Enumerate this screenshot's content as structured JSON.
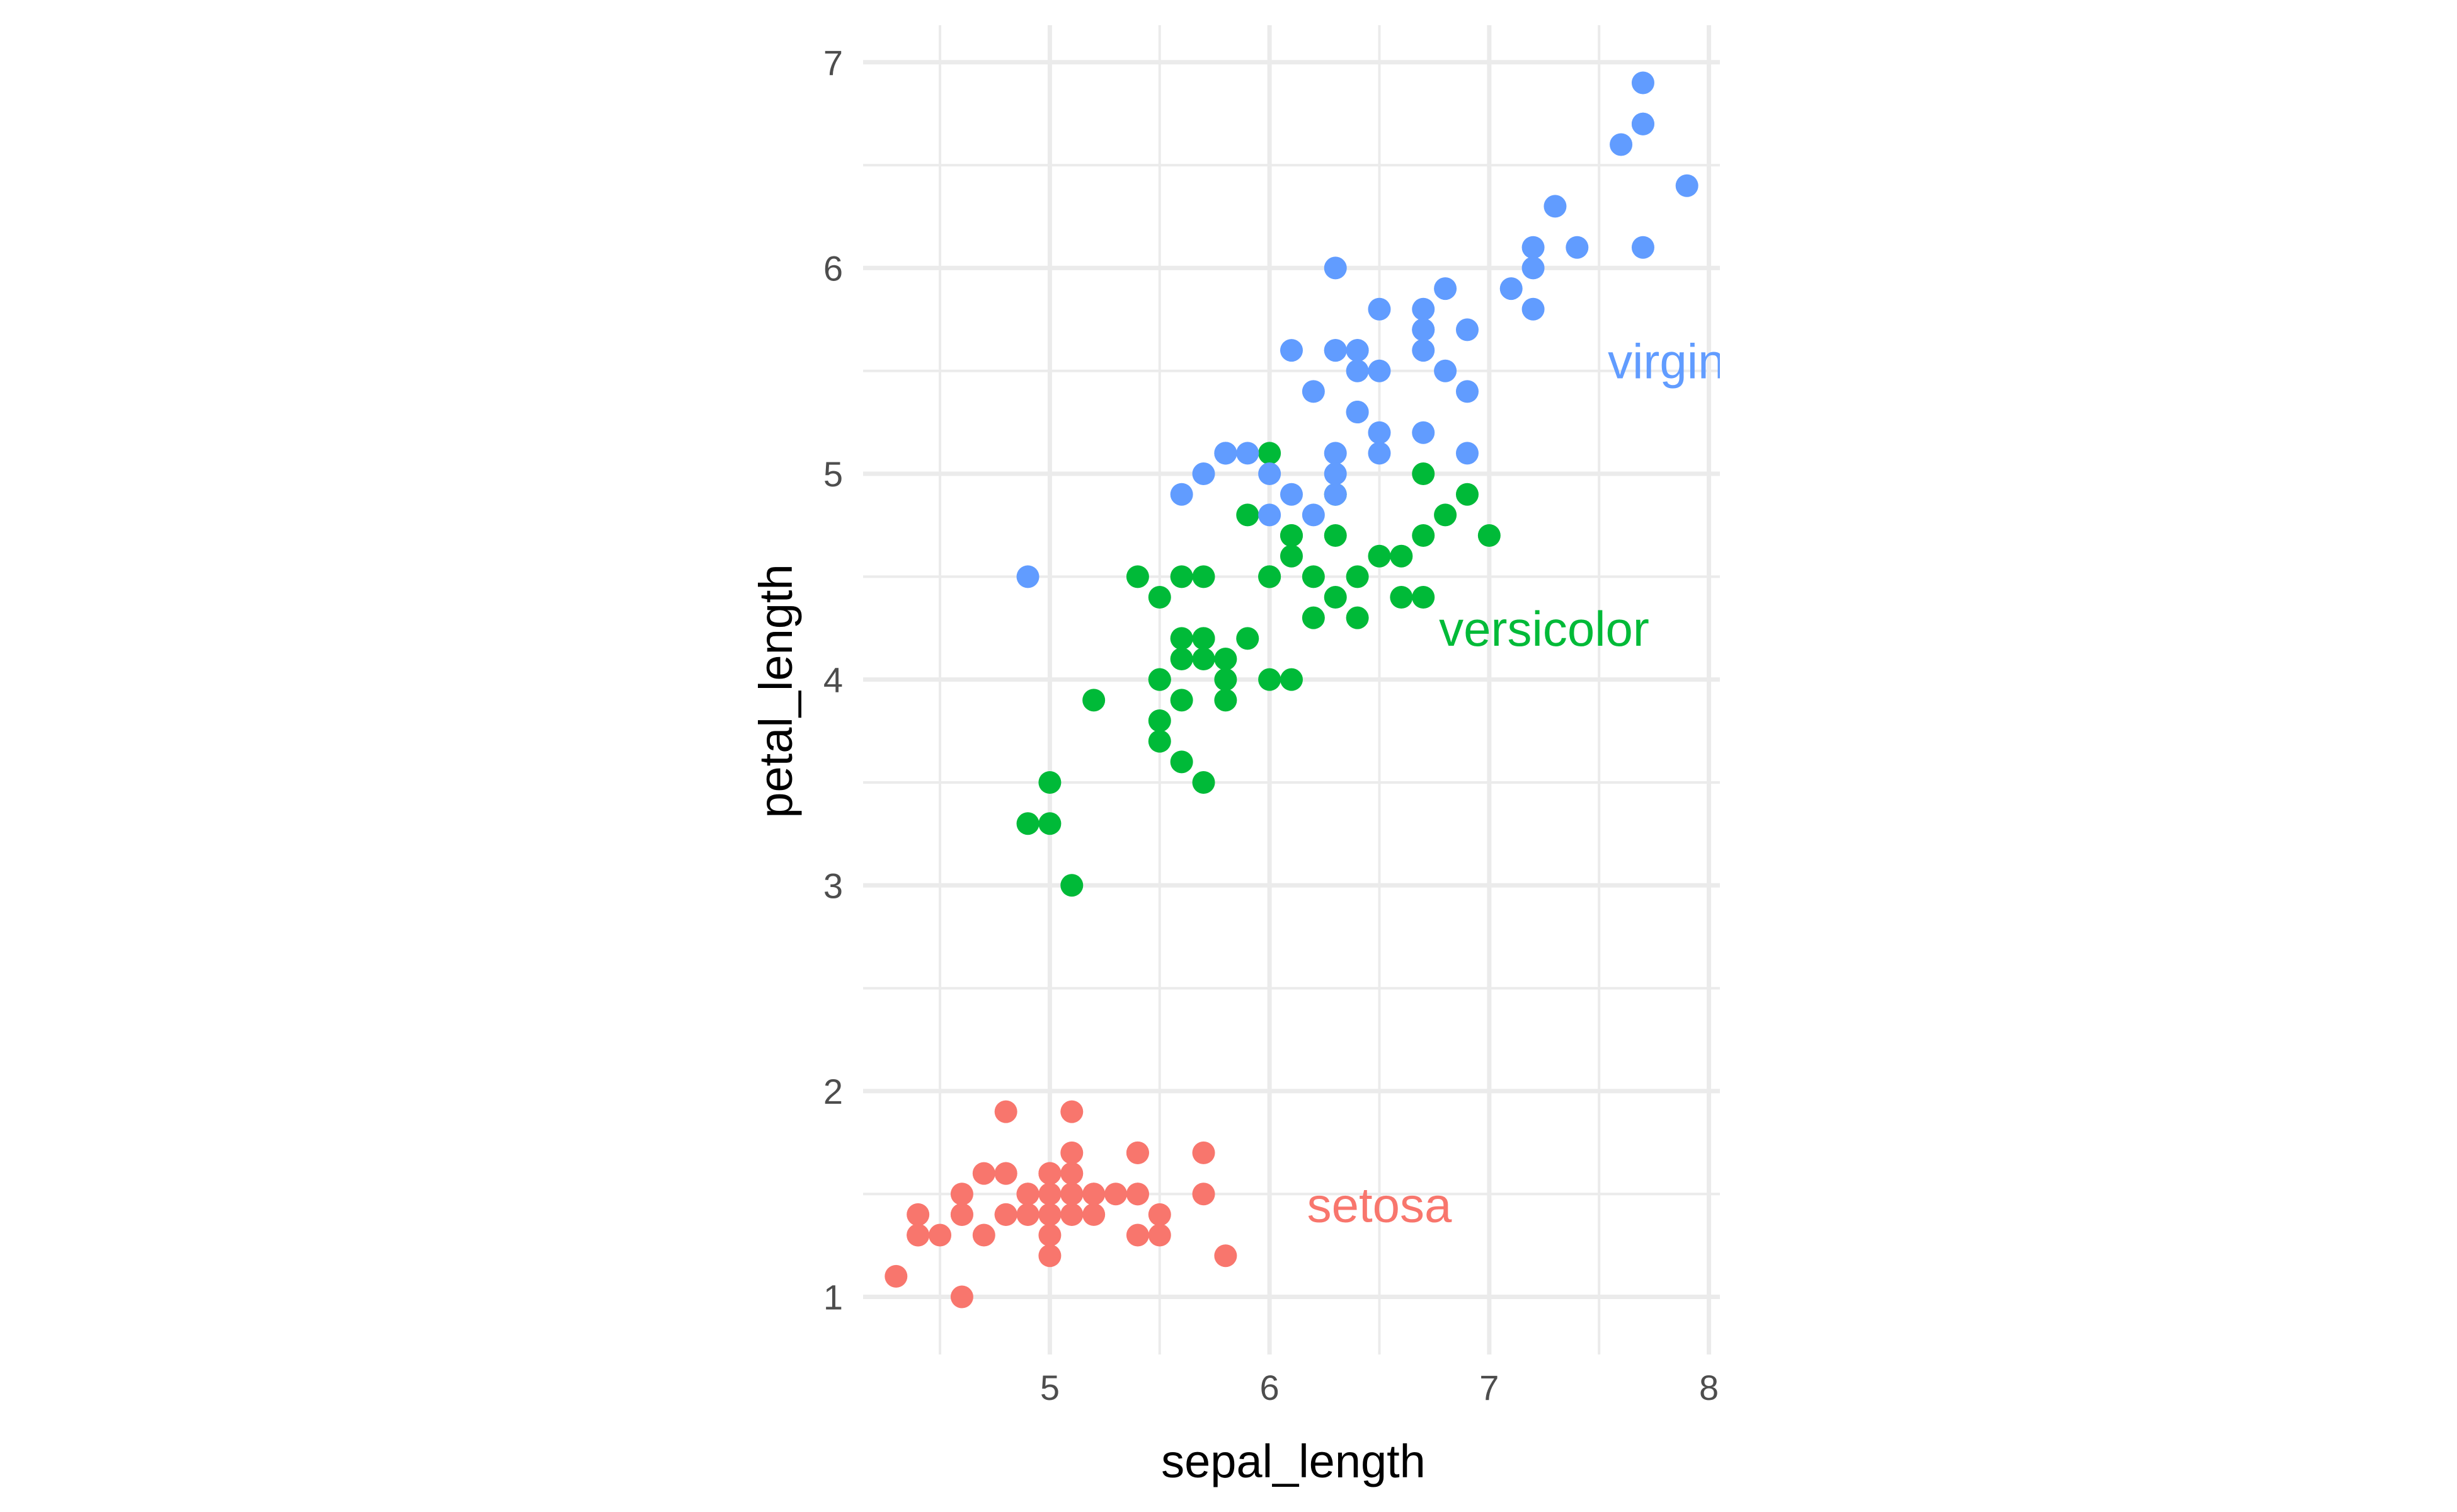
{
  "chart_data": {
    "type": "scatter",
    "xlabel": "sepal_length",
    "ylabel": "petal_length",
    "xlim": [
      4.15,
      8.05
    ],
    "ylim": [
      0.72,
      7.18
    ],
    "x_ticks": [
      "5",
      "6",
      "7",
      "8"
    ],
    "y_ticks": [
      "1",
      "2",
      "3",
      "4",
      "5",
      "6",
      "7"
    ],
    "grid": true,
    "legend": "none",
    "series": [
      {
        "name": "setosa",
        "color": "#F8766D",
        "label_x": 6.5,
        "label_y": 1.45,
        "points": [
          [
            5.1,
            1.4
          ],
          [
            4.9,
            1.4
          ],
          [
            4.7,
            1.3
          ],
          [
            4.6,
            1.5
          ],
          [
            5.0,
            1.4
          ],
          [
            5.4,
            1.7
          ],
          [
            4.6,
            1.4
          ],
          [
            5.0,
            1.5
          ],
          [
            4.4,
            1.4
          ],
          [
            4.9,
            1.5
          ],
          [
            5.4,
            1.5
          ],
          [
            4.8,
            1.6
          ],
          [
            4.8,
            1.4
          ],
          [
            4.3,
            1.1
          ],
          [
            5.8,
            1.2
          ],
          [
            5.7,
            1.5
          ],
          [
            5.4,
            1.3
          ],
          [
            5.1,
            1.4
          ],
          [
            5.7,
            1.7
          ],
          [
            5.1,
            1.5
          ],
          [
            5.4,
            1.7
          ],
          [
            5.1,
            1.5
          ],
          [
            4.6,
            1.0
          ],
          [
            5.1,
            1.7
          ],
          [
            4.8,
            1.9
          ],
          [
            5.0,
            1.6
          ],
          [
            5.0,
            1.6
          ],
          [
            5.2,
            1.5
          ],
          [
            5.2,
            1.4
          ],
          [
            4.7,
            1.6
          ],
          [
            4.8,
            1.6
          ],
          [
            5.4,
            1.5
          ],
          [
            5.2,
            1.5
          ],
          [
            5.5,
            1.4
          ],
          [
            4.9,
            1.5
          ],
          [
            5.0,
            1.2
          ],
          [
            5.5,
            1.3
          ],
          [
            4.9,
            1.4
          ],
          [
            4.4,
            1.3
          ],
          [
            5.1,
            1.5
          ],
          [
            5.0,
            1.3
          ],
          [
            4.5,
            1.3
          ],
          [
            4.4,
            1.3
          ],
          [
            5.0,
            1.6
          ],
          [
            5.1,
            1.9
          ],
          [
            4.8,
            1.4
          ],
          [
            5.1,
            1.6
          ],
          [
            4.6,
            1.4
          ],
          [
            5.3,
            1.5
          ],
          [
            5.0,
            1.4
          ]
        ]
      },
      {
        "name": "versicolor",
        "color": "#00BA38",
        "label_x": 7.25,
        "label_y": 4.25,
        "points": [
          [
            7.0,
            4.7
          ],
          [
            6.4,
            4.5
          ],
          [
            6.9,
            4.9
          ],
          [
            5.5,
            4.0
          ],
          [
            6.5,
            4.6
          ],
          [
            5.7,
            4.5
          ],
          [
            6.3,
            4.7
          ],
          [
            4.9,
            3.3
          ],
          [
            6.6,
            4.6
          ],
          [
            5.2,
            3.9
          ],
          [
            5.0,
            3.5
          ],
          [
            5.9,
            4.2
          ],
          [
            6.0,
            4.0
          ],
          [
            6.1,
            4.7
          ],
          [
            5.6,
            3.6
          ],
          [
            6.7,
            4.4
          ],
          [
            5.6,
            4.5
          ],
          [
            5.8,
            4.1
          ],
          [
            6.2,
            4.5
          ],
          [
            5.6,
            3.9
          ],
          [
            5.9,
            4.8
          ],
          [
            6.1,
            4.0
          ],
          [
            6.3,
            4.9
          ],
          [
            6.1,
            4.7
          ],
          [
            6.4,
            4.3
          ],
          [
            6.6,
            4.4
          ],
          [
            6.8,
            4.8
          ],
          [
            6.7,
            5.0
          ],
          [
            6.0,
            4.5
          ],
          [
            5.7,
            3.5
          ],
          [
            5.5,
            3.8
          ],
          [
            5.5,
            3.7
          ],
          [
            5.8,
            3.9
          ],
          [
            6.0,
            5.1
          ],
          [
            5.4,
            4.5
          ],
          [
            6.0,
            4.5
          ],
          [
            6.7,
            4.7
          ],
          [
            6.3,
            4.4
          ],
          [
            5.6,
            4.1
          ],
          [
            5.5,
            4.0
          ],
          [
            5.5,
            4.4
          ],
          [
            6.1,
            4.6
          ],
          [
            5.8,
            4.0
          ],
          [
            5.0,
            3.3
          ],
          [
            5.6,
            4.2
          ],
          [
            5.7,
            4.2
          ],
          [
            5.7,
            4.2
          ],
          [
            6.2,
            4.3
          ],
          [
            5.1,
            3.0
          ],
          [
            5.7,
            4.1
          ]
        ]
      },
      {
        "name": "virginica",
        "color": "#619CFF",
        "label_x": 7.95,
        "label_y": 5.55,
        "points": [
          [
            6.3,
            6.0
          ],
          [
            5.8,
            5.1
          ],
          [
            7.1,
            5.9
          ],
          [
            6.3,
            5.6
          ],
          [
            6.5,
            5.8
          ],
          [
            7.6,
            6.6
          ],
          [
            4.9,
            4.5
          ],
          [
            7.3,
            6.3
          ],
          [
            6.7,
            5.8
          ],
          [
            7.2,
            6.1
          ],
          [
            6.5,
            5.1
          ],
          [
            6.4,
            5.3
          ],
          [
            6.8,
            5.5
          ],
          [
            5.7,
            5.0
          ],
          [
            5.8,
            5.1
          ],
          [
            6.4,
            5.3
          ],
          [
            6.5,
            5.5
          ],
          [
            7.7,
            6.7
          ],
          [
            7.7,
            6.9
          ],
          [
            6.0,
            5.0
          ],
          [
            6.9,
            5.7
          ],
          [
            5.6,
            4.9
          ],
          [
            7.7,
            6.7
          ],
          [
            6.3,
            4.9
          ],
          [
            6.7,
            5.7
          ],
          [
            7.2,
            6.0
          ],
          [
            6.2,
            4.8
          ],
          [
            6.1,
            4.9
          ],
          [
            6.4,
            5.6
          ],
          [
            7.2,
            5.8
          ],
          [
            7.4,
            6.1
          ],
          [
            7.9,
            6.4
          ],
          [
            6.4,
            5.6
          ],
          [
            6.3,
            5.1
          ],
          [
            6.1,
            5.6
          ],
          [
            7.7,
            6.1
          ],
          [
            6.3,
            5.6
          ],
          [
            6.4,
            5.5
          ],
          [
            6.0,
            4.8
          ],
          [
            6.9,
            5.4
          ],
          [
            6.7,
            5.6
          ],
          [
            6.9,
            5.1
          ],
          [
            5.8,
            5.1
          ],
          [
            6.8,
            5.9
          ],
          [
            6.7,
            5.7
          ],
          [
            6.7,
            5.2
          ],
          [
            6.3,
            5.0
          ],
          [
            6.5,
            5.2
          ],
          [
            6.2,
            5.4
          ],
          [
            5.9,
            5.1
          ]
        ]
      }
    ]
  }
}
